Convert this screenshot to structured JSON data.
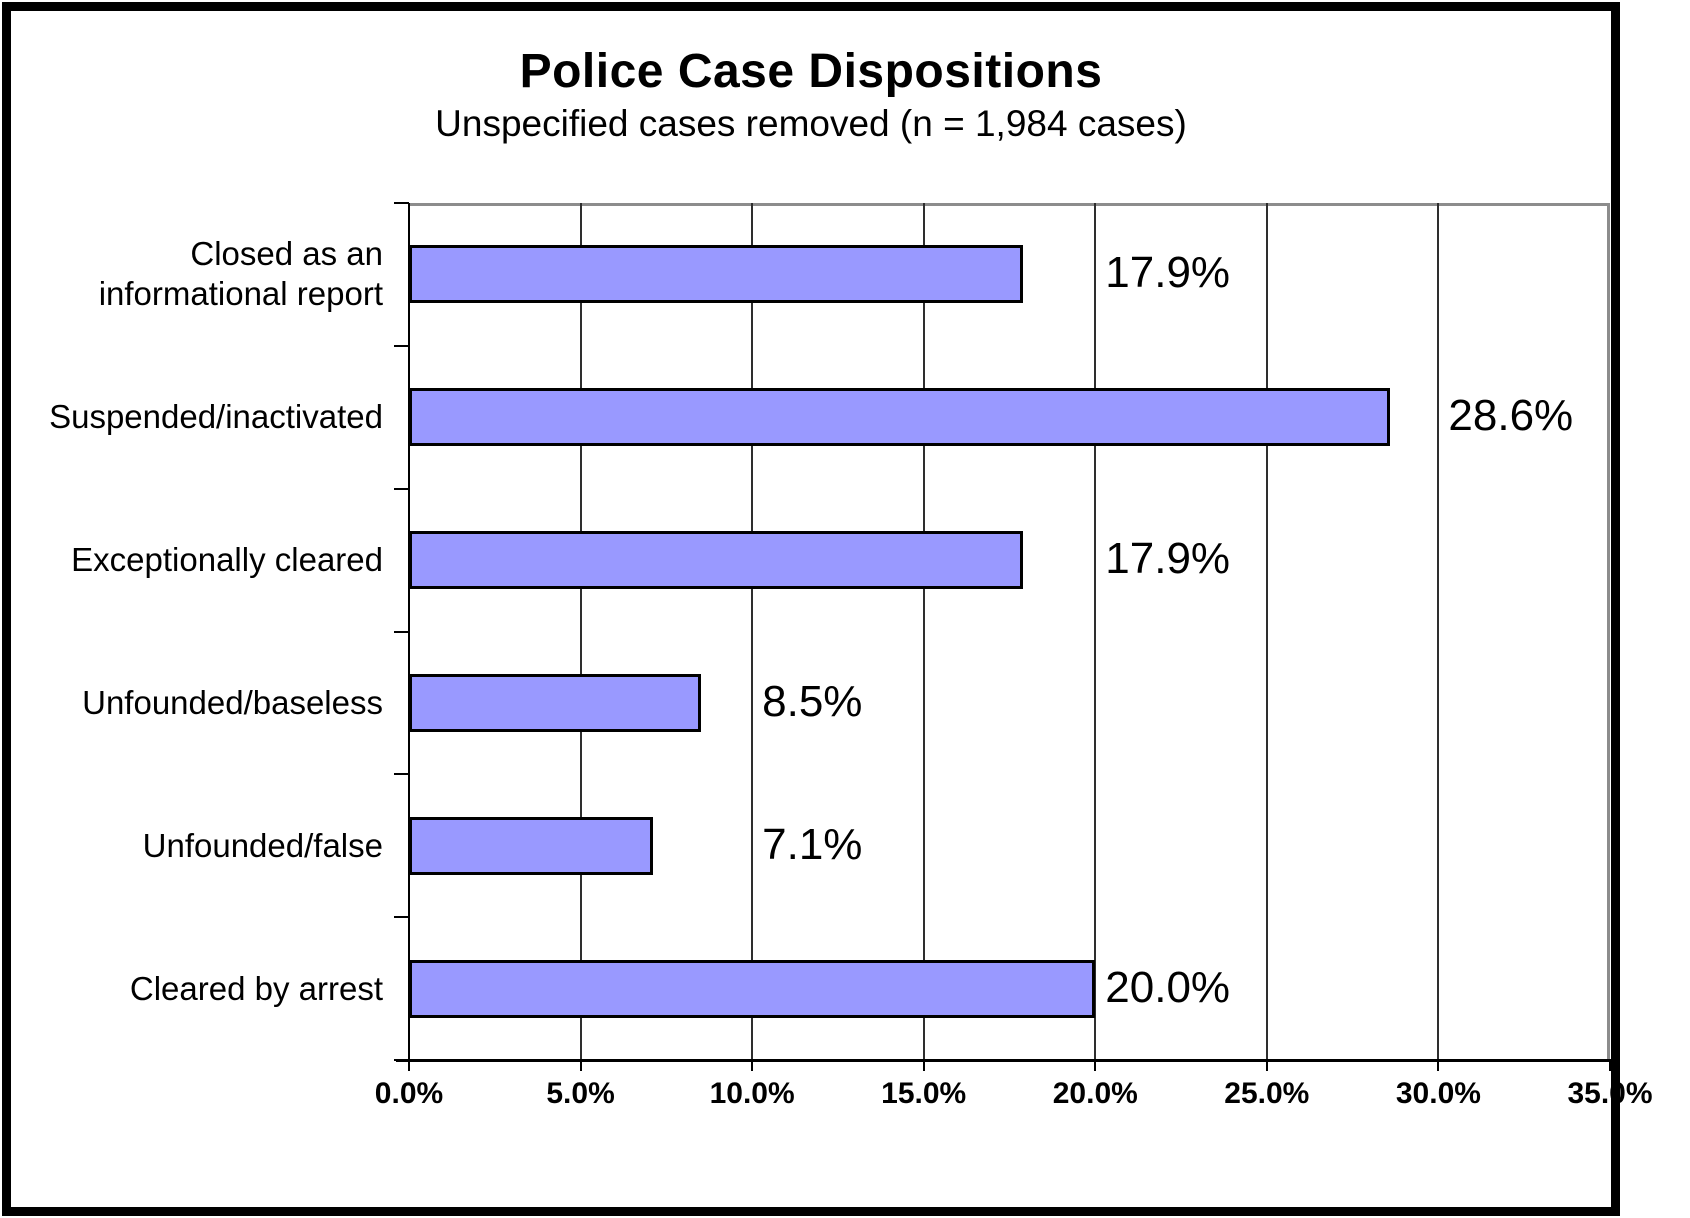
{
  "title": "Police Case Dispositions",
  "subtitle": "Unspecified cases removed (n = 1,984 cases)",
  "chart_data": {
    "type": "bar",
    "orientation": "horizontal",
    "title": "Police Case Dispositions",
    "subtitle": "Unspecified cases removed (n = 1,984 cases)",
    "sample_size_text": "n = 1,984 cases",
    "categories": [
      "Closed as an informational report",
      "Suspended/inactivated",
      "Exceptionally cleared",
      "Unfounded/baseless",
      "Unfounded/false",
      "Cleared by arrest"
    ],
    "values": [
      17.9,
      28.6,
      17.9,
      8.5,
      7.1,
      20.0
    ],
    "data_labels": [
      "17.9%",
      "28.6%",
      "17.9%",
      "8.5%",
      "7.1%",
      "20.0%"
    ],
    "xlabel": "",
    "ylabel": "",
    "xlim": [
      0,
      35
    ],
    "x_tick_step": 5,
    "x_tick_labels": [
      "0.0%",
      "5.0%",
      "10.0%",
      "15.0%",
      "20.0%",
      "25.0%",
      "30.0%",
      "35.0%"
    ],
    "grid": true,
    "legend": false,
    "bar_color": "#9999FF",
    "bar_border_color": "#000000",
    "gridline_color": "#2e2e2e",
    "plot_border_color": "#8c8c8c",
    "axis_color": "#000000",
    "text_color": "#000000",
    "background_color": "#ffffff",
    "frame_color": "#000000"
  }
}
